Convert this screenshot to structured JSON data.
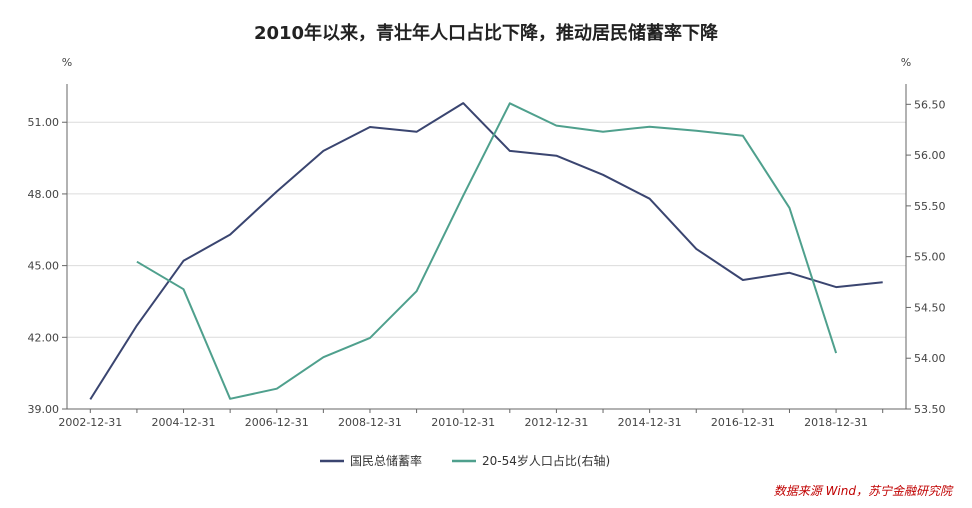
{
  "chart_data": {
    "type": "line",
    "title": "2010年以来，青壮年人口占比下降，推动居民储蓄率下降",
    "left_unit": "%",
    "right_unit": "%",
    "x": [
      "2002-12-31",
      "2003-12-31",
      "2004-12-31",
      "2005-12-31",
      "2006-12-31",
      "2007-12-31",
      "2008-12-31",
      "2009-12-31",
      "2010-12-31",
      "2011-12-31",
      "2012-12-31",
      "2013-12-31",
      "2014-12-31",
      "2015-12-31",
      "2016-12-31",
      "2017-12-31",
      "2018-12-31",
      "2019-12-31"
    ],
    "x_tick_labels": [
      "2002-12-31",
      "2004-12-31",
      "2006-12-31",
      "2008-12-31",
      "2010-12-31",
      "2012-12-31",
      "2014-12-31",
      "2016-12-31",
      "2018-12-31"
    ],
    "y_left": {
      "ticks": [
        "39.00",
        "42.00",
        "45.00",
        "48.00",
        "51.00"
      ],
      "range": [
        39.0,
        52.6
      ]
    },
    "y_right": {
      "ticks": [
        "53.50",
        "54.00",
        "54.50",
        "55.00",
        "55.50",
        "56.00",
        "56.50"
      ],
      "range": [
        53.5,
        56.7
      ]
    },
    "series": [
      {
        "name": "国民总储蓄率",
        "axis": "left",
        "color": "#3a4570",
        "values": [
          39.4,
          42.5,
          45.2,
          46.3,
          48.1,
          49.8,
          50.8,
          50.6,
          51.8,
          49.8,
          49.6,
          48.8,
          47.8,
          45.7,
          44.4,
          44.7,
          44.1,
          44.3
        ]
      },
      {
        "name": "20-54岁人口占比(右轴)",
        "axis": "right",
        "color": "#4fa08d",
        "values": [
          null,
          54.95,
          54.68,
          53.6,
          53.7,
          54.01,
          54.2,
          54.66,
          55.6,
          56.51,
          56.29,
          56.23,
          56.28,
          56.24,
          56.19,
          55.48,
          54.05,
          null
        ]
      }
    ],
    "legend_position": "bottom-center",
    "source": "数据来源 Wind，苏宁金融研究院"
  }
}
